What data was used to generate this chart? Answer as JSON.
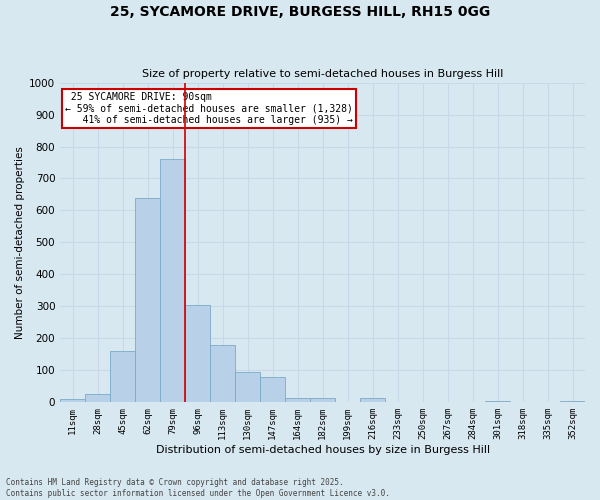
{
  "title_line1": "25, SYCAMORE DRIVE, BURGESS HILL, RH15 0GG",
  "title_line2": "Size of property relative to semi-detached houses in Burgess Hill",
  "xlabel": "Distribution of semi-detached houses by size in Burgess Hill",
  "ylabel": "Number of semi-detached properties",
  "property_label": "25 SYCAMORE DRIVE: 90sqm",
  "smaller_pct": 59,
  "smaller_n": "1,328",
  "larger_pct": 41,
  "larger_n": "935",
  "bin_labels": [
    "11sqm",
    "28sqm",
    "45sqm",
    "62sqm",
    "79sqm",
    "96sqm",
    "113sqm",
    "130sqm",
    "147sqm",
    "164sqm",
    "182sqm",
    "199sqm",
    "216sqm",
    "233sqm",
    "250sqm",
    "267sqm",
    "284sqm",
    "301sqm",
    "318sqm",
    "335sqm",
    "352sqm"
  ],
  "bar_values": [
    10,
    25,
    160,
    640,
    760,
    305,
    180,
    95,
    80,
    15,
    15,
    0,
    15,
    0,
    0,
    0,
    0,
    5,
    0,
    0,
    5
  ],
  "bar_color": "#b8d0e8",
  "bar_edge_color": "#7aaac8",
  "vline_color": "#cc0000",
  "vline_position": 4.5,
  "ylim": [
    0,
    1000
  ],
  "yticks": [
    0,
    100,
    200,
    300,
    400,
    500,
    600,
    700,
    800,
    900,
    1000
  ],
  "grid_color": "#c8d8e8",
  "bg_color": "#d8e8f0",
  "fig_bg_color": "#d8e8f0",
  "footnote": "Contains HM Land Registry data © Crown copyright and database right 2025.\nContains public sector information licensed under the Open Government Licence v3.0.",
  "annotation_box_color": "#cc0000",
  "annotation_bg": "#ffffff"
}
